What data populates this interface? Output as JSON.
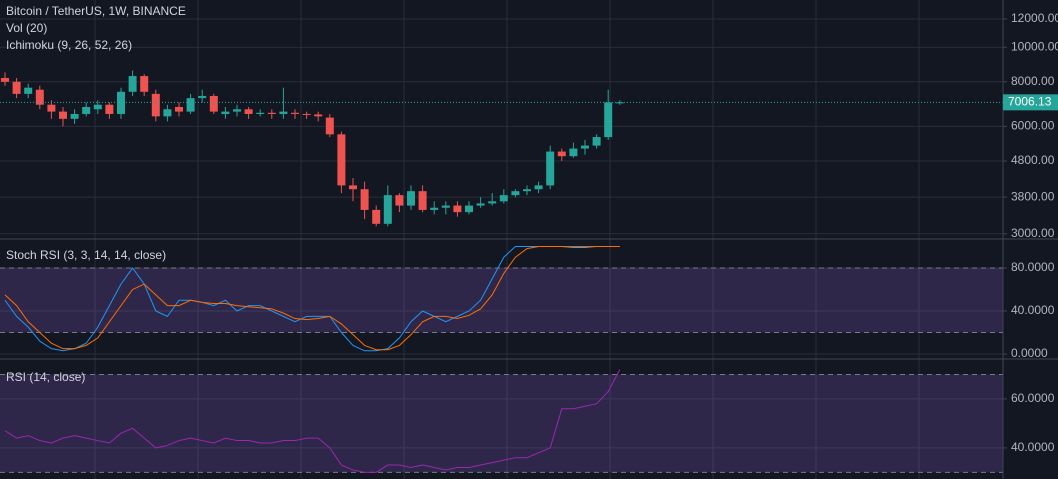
{
  "chart_data": [
    {
      "type": "candlestick",
      "title": "Bitcoin / TetherUS, 1W, BINANCE",
      "indicators": [
        "Vol (20)",
        "Ichimoku (9, 26, 52, 26)"
      ],
      "open": [
        8200,
        8000,
        7400,
        7600,
        6900,
        6600,
        6300,
        6500,
        6700,
        6900,
        6500,
        7500,
        8300,
        7400,
        6400,
        6800,
        6600,
        7200,
        7300,
        6500,
        6600,
        6700,
        6500,
        6550,
        6500,
        6550,
        6500,
        6480,
        6350,
        5700,
        4100,
        4000,
        3500,
        3200,
        3850,
        3600,
        3950,
        3500,
        3550,
        3600,
        3450,
        3600,
        3650,
        3700,
        3850,
        3950,
        4000,
        4100,
        5100,
        4950,
        5200,
        5300,
        5600,
        7000
      ],
      "high": [
        8500,
        8200,
        7900,
        7800,
        7100,
        6800,
        6700,
        7000,
        7100,
        7000,
        7700,
        8600,
        8400,
        7600,
        6900,
        7000,
        7400,
        7600,
        7400,
        6800,
        6900,
        6800,
        6700,
        6700,
        7700,
        6700,
        6600,
        6600,
        6500,
        5800,
        4300,
        4200,
        3600,
        4100,
        3900,
        4100,
        4100,
        3700,
        3700,
        3700,
        3700,
        3800,
        3900,
        4000,
        4000,
        4100,
        4200,
        5300,
        5200,
        5400,
        5500,
        5700,
        7600,
        7100
      ],
      "low": [
        7800,
        7200,
        7200,
        6700,
        6300,
        6000,
        6100,
        6400,
        6500,
        6300,
        6300,
        7300,
        7300,
        6200,
        6200,
        6400,
        6500,
        7000,
        6500,
        6300,
        6400,
        6300,
        6400,
        6300,
        6300,
        6300,
        6300,
        6200,
        5600,
        3900,
        3700,
        3300,
        3150,
        3150,
        3450,
        3500,
        3450,
        3400,
        3400,
        3350,
        3400,
        3550,
        3600,
        3650,
        3800,
        3850,
        3900,
        4000,
        4800,
        4900,
        5000,
        5200,
        5500,
        6900
      ],
      "close": [
        8000,
        7400,
        7700,
        6900,
        6600,
        6300,
        6500,
        6800,
        6900,
        6500,
        7500,
        8300,
        7500,
        6400,
        6700,
        6600,
        7200,
        7300,
        6600,
        6600,
        6700,
        6500,
        6550,
        6500,
        6600,
        6500,
        6480,
        6400,
        5700,
        4100,
        4000,
        3500,
        3200,
        3850,
        3600,
        3950,
        3500,
        3550,
        3600,
        3450,
        3600,
        3650,
        3700,
        3850,
        3950,
        4000,
        4100,
        5100,
        4950,
        5200,
        5300,
        5600,
        7000,
        7006.13
      ],
      "up_color": "#26a69a",
      "down_color": "#ef5350",
      "log_scale": true,
      "ylim": [
        2920,
        13560
      ],
      "yticks": [
        {
          "value": 3000,
          "label": "3000.00"
        },
        {
          "value": 3800,
          "label": "3800.00"
        },
        {
          "value": 4800,
          "label": "4800.00"
        },
        {
          "value": 6000,
          "label": "6000.00"
        },
        {
          "value": 8000,
          "label": "8000.00"
        },
        {
          "value": 10000,
          "label": "10000.00"
        },
        {
          "value": 12000,
          "label": "12000.00"
        }
      ],
      "grid": true
    },
    {
      "type": "line",
      "title": "Stoch RSI (3, 3, 14, 14, close)",
      "series": [
        {
          "color": "#2196f3",
          "values": [
            50,
            35,
            25,
            12,
            5,
            3,
            5,
            10,
            25,
            45,
            65,
            80,
            65,
            40,
            35,
            50,
            50,
            48,
            45,
            50,
            40,
            45,
            45,
            40,
            35,
            30,
            35,
            35,
            35,
            20,
            8,
            3,
            3,
            5,
            15,
            30,
            40,
            35,
            30,
            35,
            40,
            50,
            70,
            90,
            100,
            100,
            100,
            100,
            100,
            100,
            100,
            100,
            100,
            100
          ]
        },
        {
          "color": "#ff6d00",
          "values": [
            55,
            45,
            30,
            20,
            10,
            5,
            5,
            8,
            15,
            30,
            45,
            60,
            65,
            55,
            45,
            45,
            50,
            48,
            47,
            47,
            45,
            44,
            43,
            42,
            38,
            33,
            32,
            33,
            35,
            28,
            18,
            8,
            4,
            4,
            8,
            18,
            30,
            35,
            35,
            33,
            36,
            42,
            55,
            75,
            90,
            98,
            100,
            100,
            100,
            99,
            99,
            100,
            100,
            100
          ]
        }
      ],
      "bands": [
        20,
        80
      ],
      "band_color": "#7e57c2",
      "ylim": [
        -3.7,
        106
      ],
      "yticks": [
        {
          "value": 0,
          "label": "0.0000"
        },
        {
          "value": 40,
          "label": "40.0000"
        },
        {
          "value": 80,
          "label": "80.0000"
        }
      ],
      "grid": true
    },
    {
      "type": "line",
      "title": "RSI (14, close)",
      "series": [
        {
          "color": "#9c27b0",
          "values": [
            47,
            44,
            45,
            43,
            42,
            44,
            45,
            44,
            43,
            42,
            46,
            48,
            44,
            40,
            41,
            43,
            44,
            43,
            42,
            44,
            43,
            43,
            42,
            42,
            43,
            43,
            44,
            44,
            40,
            33,
            31,
            30,
            30,
            33,
            33,
            32,
            33,
            32,
            31,
            32,
            32,
            33,
            34,
            35,
            36,
            36,
            38,
            40,
            56,
            56,
            57,
            58,
            63,
            72
          ]
        }
      ],
      "bands": [
        30,
        70
      ],
      "band_color": "#7e57c2",
      "ylim": [
        27.3,
        75.9
      ],
      "yticks": [
        {
          "value": 40,
          "label": "40.0000"
        },
        {
          "value": 60,
          "label": "60.0000"
        }
      ],
      "grid": true
    }
  ]
}
